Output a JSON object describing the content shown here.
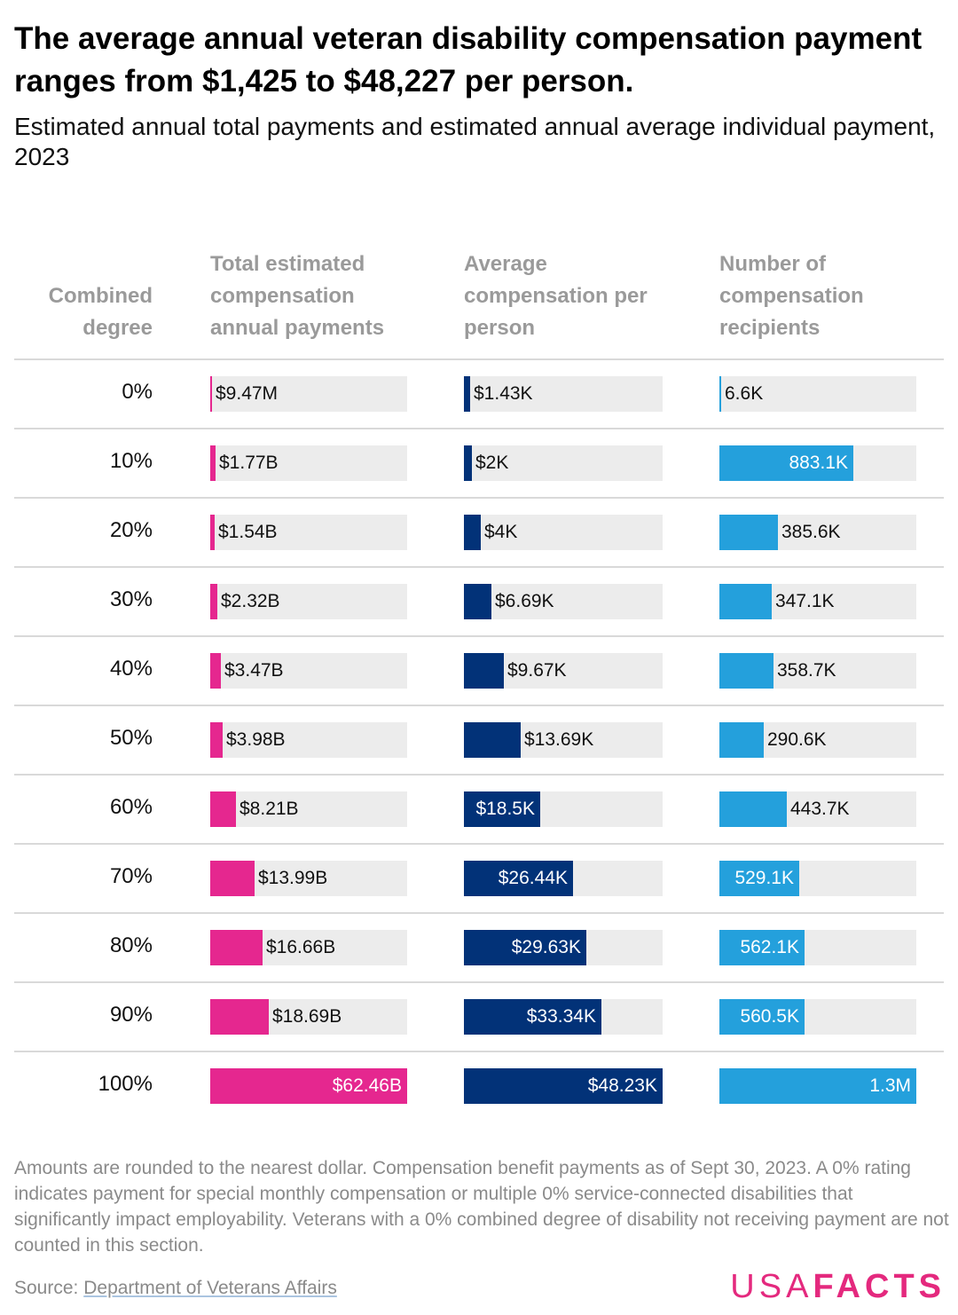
{
  "title": "The average annual veteran disability compensation payment ranges from $1,425 to $48,227 per person.",
  "subtitle": "Estimated annual total payments and estimated annual average individual payment, 2023",
  "headers": {
    "degree": "Combined degree",
    "total": "Total estimated compensation annual payments",
    "avg": "Average compensation per person",
    "count": "Number of compensation recipients"
  },
  "colors": {
    "total": "#e5278f",
    "avg": "#023278",
    "count": "#24a0dc",
    "track": "#ececec"
  },
  "chart_data": {
    "type": "bar",
    "categories": [
      "0%",
      "10%",
      "20%",
      "30%",
      "40%",
      "50%",
      "60%",
      "70%",
      "80%",
      "90%",
      "100%"
    ],
    "series": [
      {
        "name": "Total estimated compensation annual payments",
        "values": [
          9470000,
          1770000000,
          1540000000,
          2320000000,
          3470000000,
          3980000000,
          8210000000,
          13990000000,
          16660000000,
          18690000000,
          62460000000
        ],
        "labels": [
          "$9.47M",
          "$1.77B",
          "$1.54B",
          "$2.32B",
          "$3.47B",
          "$3.98B",
          "$8.21B",
          "$13.99B",
          "$16.66B",
          "$18.69B",
          "$62.46B"
        ]
      },
      {
        "name": "Average compensation per person",
        "values": [
          1430,
          2000,
          4000,
          6690,
          9670,
          13690,
          18500,
          26440,
          29630,
          33340,
          48230
        ],
        "labels": [
          "$1.43K",
          "$2K",
          "$4K",
          "$6.69K",
          "$9.67K",
          "$13.69K",
          "$18.5K",
          "$26.44K",
          "$29.63K",
          "$33.34K",
          "$48.23K"
        ]
      },
      {
        "name": "Number of compensation recipients",
        "values": [
          6600,
          883100,
          385600,
          347100,
          358700,
          290600,
          443700,
          529100,
          562100,
          560500,
          1300000
        ],
        "labels": [
          "6.6K",
          "883.1K",
          "385.6K",
          "347.1K",
          "358.7K",
          "290.6K",
          "443.7K",
          "529.1K",
          "562.1K",
          "560.5K",
          "1.3M"
        ]
      }
    ]
  },
  "footnote": "Amounts are rounded to the nearest dollar. Compensation benefit payments as of Sept 30, 2023. A 0% rating indicates payment for special monthly compensation or multiple 0% service-connected disabilities that significantly impact employability. Veterans with a 0% combined degree of disability not receiving payment are not counted in this section.",
  "source": {
    "prefix": "Source: ",
    "link_text": "Department of Veterans Affairs"
  },
  "logo": {
    "part1": "USA",
    "part2": "FACTS"
  }
}
